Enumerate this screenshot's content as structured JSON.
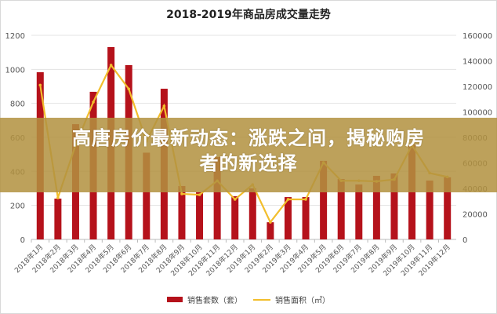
{
  "chart_data": {
    "type": "bar+line",
    "title": "2018-2019年商品房成交量走势",
    "categories": [
      "2018年1月",
      "2018年2月",
      "2018年3月",
      "2018年4月",
      "2018年5月",
      "2018年6月",
      "2018年7月",
      "2018年8月",
      "2018年9月",
      "2018年10月",
      "2018年11月",
      "2018年12月",
      "2019年1月",
      "2019年2月",
      "2019年3月",
      "2019年4月",
      "2019年5月",
      "2019年6月",
      "2019年7月",
      "2019年8月",
      "2019年9月",
      "2019年10月",
      "2019年11月",
      "2019年12月"
    ],
    "series": [
      {
        "name": "销售套数（套）",
        "type": "bar",
        "axis": "left",
        "color": "#b5121b",
        "values": [
          983,
          240,
          678,
          868,
          1131,
          1025,
          510,
          886,
          314,
          277,
          485,
          254,
          300,
          101,
          249,
          249,
          462,
          355,
          323,
          374,
          388,
          558,
          346,
          365
        ]
      },
      {
        "name": "销售面积（㎡）",
        "type": "line",
        "axis": "right",
        "color": "#f2be2c",
        "values": [
          121000,
          32600,
          74000,
          107700,
          136600,
          118000,
          77000,
          104600,
          35700,
          35000,
          46000,
          31400,
          43000,
          13500,
          31400,
          31400,
          60300,
          46000,
          46000,
          45500,
          47000,
          73800,
          52000,
          49000
        ]
      }
    ],
    "left_axis": {
      "range": [
        0,
        1200
      ],
      "ticks": [
        "0",
        "200",
        "400",
        "600",
        "800",
        "1000",
        "1200"
      ]
    },
    "right_axis": {
      "range": [
        0,
        160000
      ],
      "ticks": [
        "0",
        "20000",
        "40000",
        "60000",
        "80000",
        "100000",
        "120000",
        "140000",
        "160000"
      ]
    },
    "grid": true,
    "legend": "bottom"
  },
  "legend": {
    "bar_label": "销售套数（套）",
    "line_label": "销售面积（㎡）"
  },
  "banner": {
    "line1": "高唐房价最新动态：涨跌之间，揭秘购房",
    "line2": "者的新选择"
  }
}
